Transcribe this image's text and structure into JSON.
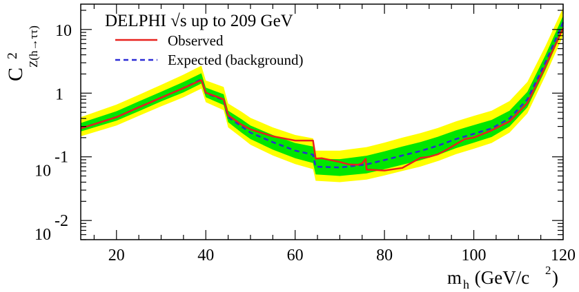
{
  "chart_data": {
    "type": "line",
    "title": "DELPHI  √s up to 209 GeV",
    "xlabel": {
      "main": "m",
      "sub": "h",
      "unit_open": " (GeV/c",
      "unit_sup": "2",
      "unit_close": ")"
    },
    "ylabel": {
      "main": "C",
      "sup": "2",
      "sub": "Z(h→ττ)"
    },
    "xlim": [
      12,
      120
    ],
    "ylim": [
      0.005,
      25
    ],
    "yscale": "log",
    "x_ticks": [
      20,
      40,
      60,
      80,
      100,
      120
    ],
    "y_ticks": [
      {
        "value": 0.01,
        "base": "10",
        "exp": "-2"
      },
      {
        "value": 0.1,
        "base": "10",
        "exp": "-1"
      },
      {
        "value": 1,
        "base": "1",
        "exp": ""
      },
      {
        "value": 10,
        "base": "10",
        "exp": ""
      }
    ],
    "grid": false,
    "legend_position": "top-left",
    "colors": {
      "observed": "#e8201c",
      "expected": "#2a2ad6",
      "band_2sigma": "#ffff00",
      "band_1sigma": "#00e600"
    },
    "series": [
      {
        "name": "Observed",
        "x": [
          12,
          20,
          25,
          30,
          35,
          39,
          40,
          44,
          45,
          48,
          50,
          55,
          60,
          64,
          64.6,
          66,
          70,
          72,
          74,
          75,
          75.8,
          76,
          80,
          84,
          86,
          88,
          90,
          92,
          94,
          96,
          98,
          100,
          104,
          108,
          112,
          116,
          120
        ],
        "y": [
          0.28,
          0.42,
          0.6,
          0.85,
          1.2,
          1.6,
          1.02,
          0.8,
          0.45,
          0.32,
          0.27,
          0.21,
          0.18,
          0.18,
          0.094,
          0.095,
          0.083,
          0.076,
          0.075,
          0.079,
          0.093,
          0.063,
          0.061,
          0.067,
          0.08,
          0.096,
          0.1,
          0.11,
          0.13,
          0.158,
          0.19,
          0.2,
          0.26,
          0.36,
          0.7,
          2.6,
          10.5
        ]
      },
      {
        "name": "Expected (background)",
        "x": [
          12,
          20,
          25,
          30,
          35,
          39,
          40,
          44,
          45,
          48,
          50,
          55,
          60,
          64,
          64.6,
          70,
          76,
          80,
          84,
          88,
          92,
          96,
          100,
          104,
          108,
          112,
          116,
          120
        ],
        "y": [
          0.28,
          0.42,
          0.6,
          0.85,
          1.2,
          1.65,
          1.0,
          0.78,
          0.42,
          0.3,
          0.24,
          0.17,
          0.125,
          0.108,
          0.07,
          0.068,
          0.076,
          0.089,
          0.105,
          0.123,
          0.15,
          0.19,
          0.23,
          0.28,
          0.4,
          0.8,
          3.0,
          13
        ]
      }
    ],
    "band_1sigma": {
      "x": [
        12,
        20,
        25,
        30,
        35,
        39,
        40,
        44,
        45,
        48,
        50,
        55,
        60,
        64,
        64.6,
        70,
        76,
        80,
        84,
        88,
        92,
        96,
        100,
        104,
        108,
        112,
        116,
        120
      ],
      "lower": [
        0.25,
        0.37,
        0.52,
        0.74,
        1.03,
        1.42,
        0.86,
        0.65,
        0.35,
        0.24,
        0.19,
        0.13,
        0.095,
        0.08,
        0.053,
        0.05,
        0.055,
        0.064,
        0.075,
        0.088,
        0.107,
        0.137,
        0.167,
        0.205,
        0.3,
        0.6,
        2.3,
        10
      ],
      "upper": [
        0.34,
        0.52,
        0.74,
        1.05,
        1.5,
        2.05,
        1.22,
        0.96,
        0.53,
        0.39,
        0.31,
        0.22,
        0.165,
        0.145,
        0.093,
        0.092,
        0.104,
        0.122,
        0.145,
        0.17,
        0.207,
        0.26,
        0.315,
        0.38,
        0.53,
        1.05,
        3.9,
        16.5
      ]
    },
    "band_2sigma": {
      "x": [
        12,
        20,
        25,
        30,
        35,
        39,
        40,
        44,
        45,
        48,
        50,
        55,
        60,
        64,
        64.6,
        70,
        76,
        80,
        84,
        88,
        92,
        96,
        100,
        104,
        108,
        112,
        116,
        120
      ],
      "lower": [
        0.21,
        0.31,
        0.44,
        0.62,
        0.86,
        1.18,
        0.72,
        0.54,
        0.29,
        0.2,
        0.155,
        0.105,
        0.077,
        0.064,
        0.042,
        0.04,
        0.044,
        0.051,
        0.06,
        0.07,
        0.086,
        0.11,
        0.134,
        0.165,
        0.24,
        0.48,
        1.85,
        8
      ],
      "upper": [
        0.42,
        0.66,
        0.94,
        1.35,
        1.95,
        2.7,
        1.58,
        1.25,
        0.69,
        0.51,
        0.41,
        0.29,
        0.22,
        0.195,
        0.125,
        0.125,
        0.142,
        0.167,
        0.2,
        0.235,
        0.285,
        0.36,
        0.44,
        0.53,
        0.75,
        1.5,
        5.4,
        22
      ]
    }
  }
}
